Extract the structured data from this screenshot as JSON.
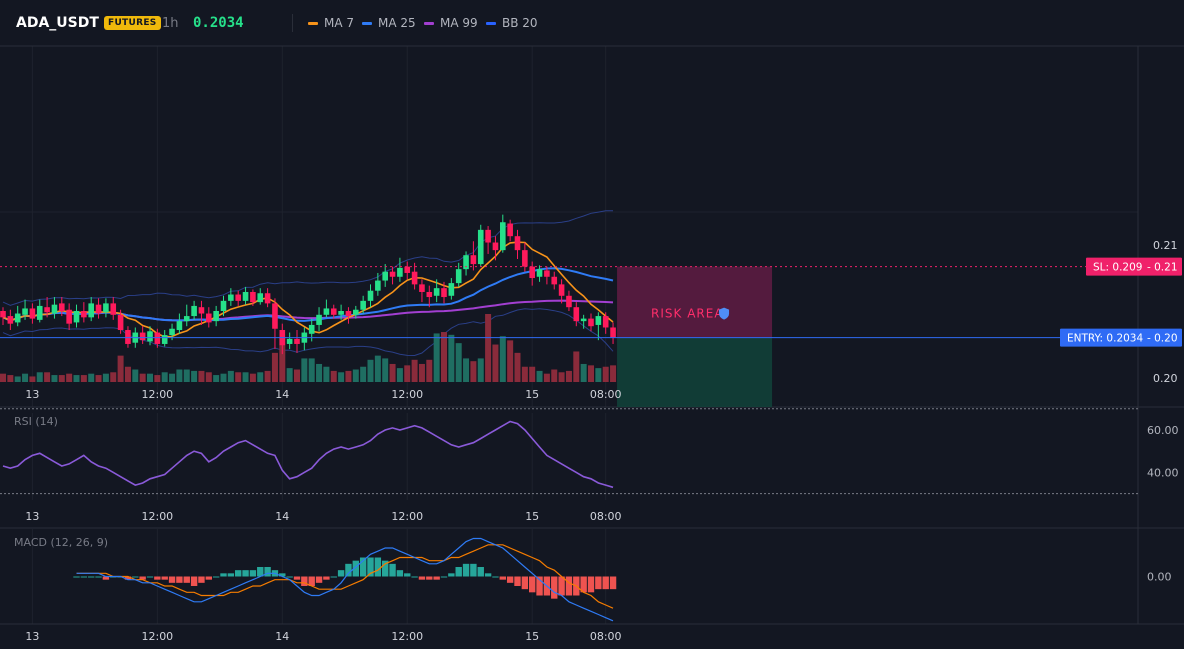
{
  "header": {
    "symbol": "ADA_USDT",
    "badge": "FUTURES",
    "timeframe": "1h",
    "price": "0.2034",
    "legend": [
      {
        "label": "MA 7",
        "color": "#f7931a"
      },
      {
        "label": "MA 25",
        "color": "#2f7bf5"
      },
      {
        "label": "MA 99",
        "color": "#a23fd1"
      },
      {
        "label": "BB 20",
        "color": "#2962ff"
      }
    ]
  },
  "colors": {
    "up": "#26e08a",
    "down": "#ff1a5c",
    "vol_up": "#1f6e62",
    "vol_down": "#8a2b3b",
    "rsi": "#8a5ad9",
    "macd": "#2f7bf5",
    "signal": "#f57c00",
    "hist_up": "#26a69a",
    "hist_down": "#ef5350",
    "entry": "#2f6bf5",
    "sl": "#f0216a"
  },
  "chart_data": {
    "type": "candlestick",
    "x_ticks": [
      "13",
      "12:00",
      "14",
      "12:00",
      "15",
      "08:00"
    ],
    "y_ticks": [
      "0.21",
      "0.20"
    ],
    "ylim": [
      0.1999,
      0.2264
    ],
    "sl": {
      "price": 0.209,
      "label": "SL: 0.209",
      "value_label": "0.21"
    },
    "entry": {
      "price": 0.2034,
      "label": "ENTRY: 0.2034",
      "value_label": "0.20"
    },
    "risk_zone_label": "RISK AREA",
    "candles": [
      [
        0.2055,
        0.205,
        0.2058,
        0.2044
      ],
      [
        0.2051,
        0.2045,
        0.2056,
        0.204
      ],
      [
        0.2046,
        0.2053,
        0.2059,
        0.2043
      ],
      [
        0.2052,
        0.2057,
        0.2064,
        0.2048
      ],
      [
        0.2057,
        0.2049,
        0.2061,
        0.2045
      ],
      [
        0.2048,
        0.2059,
        0.2064,
        0.2046
      ],
      [
        0.2058,
        0.2054,
        0.2066,
        0.205
      ],
      [
        0.2053,
        0.206,
        0.2066,
        0.2049
      ],
      [
        0.2061,
        0.2055,
        0.2066,
        0.2051
      ],
      [
        0.2056,
        0.2045,
        0.2061,
        0.204
      ],
      [
        0.2046,
        0.2055,
        0.206,
        0.2042
      ],
      [
        0.2055,
        0.205,
        0.2062,
        0.2046
      ],
      [
        0.205,
        0.2061,
        0.2066,
        0.2047
      ],
      [
        0.206,
        0.2053,
        0.2065,
        0.2049
      ],
      [
        0.2054,
        0.2061,
        0.2065,
        0.205
      ],
      [
        0.2061,
        0.2052,
        0.2066,
        0.2048
      ],
      [
        0.2052,
        0.204,
        0.2056,
        0.2037
      ],
      [
        0.204,
        0.2029,
        0.2043,
        0.2026
      ],
      [
        0.203,
        0.2038,
        0.2042,
        0.2026
      ],
      [
        0.2038,
        0.2032,
        0.2043,
        0.2029
      ],
      [
        0.2031,
        0.2039,
        0.2043,
        0.2028
      ],
      [
        0.2038,
        0.2029,
        0.2041,
        0.2026
      ],
      [
        0.2029,
        0.2036,
        0.204,
        0.2027
      ],
      [
        0.2036,
        0.2041,
        0.2045,
        0.2032
      ],
      [
        0.204,
        0.2047,
        0.2053,
        0.2037
      ],
      [
        0.2047,
        0.2051,
        0.206,
        0.2043
      ],
      [
        0.2051,
        0.2059,
        0.2063,
        0.2048
      ],
      [
        0.2058,
        0.2053,
        0.2063,
        0.2044
      ],
      [
        0.2053,
        0.2046,
        0.2058,
        0.2042
      ],
      [
        0.2047,
        0.2055,
        0.2059,
        0.2043
      ],
      [
        0.2055,
        0.2063,
        0.2067,
        0.2051
      ],
      [
        0.2063,
        0.2068,
        0.2073,
        0.2059
      ],
      [
        0.2068,
        0.2063,
        0.2071,
        0.2059
      ],
      [
        0.2063,
        0.207,
        0.2074,
        0.206
      ],
      [
        0.207,
        0.2062,
        0.2072,
        0.2059
      ],
      [
        0.2062,
        0.2069,
        0.2073,
        0.206
      ],
      [
        0.2069,
        0.2061,
        0.2073,
        0.2058
      ],
      [
        0.2061,
        0.2041,
        0.2065,
        0.2025
      ],
      [
        0.204,
        0.2028,
        0.2045,
        0.2021
      ],
      [
        0.2029,
        0.2033,
        0.2038,
        0.2025
      ],
      [
        0.2033,
        0.2029,
        0.204,
        0.2022
      ],
      [
        0.203,
        0.2038,
        0.2042,
        0.2024
      ],
      [
        0.2037,
        0.2044,
        0.2049,
        0.2031
      ],
      [
        0.2044,
        0.2052,
        0.2058,
        0.2039
      ],
      [
        0.2052,
        0.2057,
        0.2064,
        0.205
      ],
      [
        0.2057,
        0.2052,
        0.206,
        0.2049
      ],
      [
        0.2052,
        0.2055,
        0.206,
        0.2048
      ],
      [
        0.2055,
        0.2051,
        0.2058,
        0.2045
      ],
      [
        0.2052,
        0.2056,
        0.2059,
        0.2049
      ],
      [
        0.2056,
        0.2063,
        0.2067,
        0.2053
      ],
      [
        0.2063,
        0.2071,
        0.2076,
        0.2058
      ],
      [
        0.2071,
        0.2079,
        0.2085,
        0.2067
      ],
      [
        0.2079,
        0.2086,
        0.2092,
        0.2074
      ],
      [
        0.2086,
        0.2082,
        0.209,
        0.2076
      ],
      [
        0.2082,
        0.2089,
        0.2097,
        0.2078
      ],
      [
        0.209,
        0.2085,
        0.2094,
        0.208
      ],
      [
        0.2086,
        0.2076,
        0.2093,
        0.2072
      ],
      [
        0.2076,
        0.207,
        0.208,
        0.2062
      ],
      [
        0.207,
        0.2066,
        0.2075,
        0.2058
      ],
      [
        0.2067,
        0.2073,
        0.208,
        0.2062
      ],
      [
        0.2073,
        0.2066,
        0.2078,
        0.2061
      ],
      [
        0.2067,
        0.2077,
        0.2081,
        0.2064
      ],
      [
        0.2077,
        0.2088,
        0.2093,
        0.2074
      ],
      [
        0.2088,
        0.2099,
        0.2102,
        0.2083
      ],
      [
        0.2099,
        0.2092,
        0.211,
        0.2087
      ],
      [
        0.2092,
        0.2119,
        0.2123,
        0.209
      ],
      [
        0.2119,
        0.2109,
        0.2122,
        0.21
      ],
      [
        0.2109,
        0.2103,
        0.2114,
        0.2095
      ],
      [
        0.2103,
        0.2125,
        0.2131,
        0.2101
      ],
      [
        0.2124,
        0.2114,
        0.2127,
        0.211
      ],
      [
        0.2114,
        0.2103,
        0.2119,
        0.2096
      ],
      [
        0.2103,
        0.209,
        0.2109,
        0.2086
      ],
      [
        0.209,
        0.2081,
        0.2094,
        0.2075
      ],
      [
        0.2082,
        0.2088,
        0.2091,
        0.2078
      ],
      [
        0.2087,
        0.2082,
        0.209,
        0.2076
      ],
      [
        0.2082,
        0.2076,
        0.2086,
        0.2072
      ],
      [
        0.2076,
        0.2067,
        0.208,
        0.2061
      ],
      [
        0.2067,
        0.2058,
        0.2071,
        0.2055
      ],
      [
        0.2058,
        0.2047,
        0.2062,
        0.2043
      ],
      [
        0.2047,
        0.2049,
        0.2052,
        0.2041
      ],
      [
        0.2049,
        0.2043,
        0.2053,
        0.2039
      ],
      [
        0.2044,
        0.2051,
        0.2054,
        0.2032
      ],
      [
        0.2051,
        0.2042,
        0.2054,
        0.2037
      ],
      [
        0.2042,
        0.2034,
        0.2046,
        0.2029
      ]
    ],
    "volume": [
      6,
      5,
      4,
      6,
      4,
      7,
      7,
      5,
      5,
      6,
      5,
      5,
      6,
      5,
      6,
      7,
      19,
      11,
      9,
      6,
      6,
      5,
      7,
      6,
      9,
      9,
      8,
      8,
      7,
      5,
      6,
      8,
      7,
      7,
      6,
      7,
      8,
      21,
      32,
      10,
      9,
      17,
      17,
      13,
      11,
      8,
      7,
      8,
      9,
      11,
      16,
      19,
      17,
      13,
      10,
      12,
      16,
      13,
      16,
      35,
      36,
      34,
      28,
      17,
      15,
      17,
      49,
      27,
      33,
      30,
      21,
      11,
      11,
      8,
      6,
      9,
      7,
      8,
      22,
      13,
      12,
      10,
      11,
      12
    ],
    "rsi": {
      "label": "RSI (14)",
      "y_ticks": [
        "60.00",
        "40.00"
      ],
      "ylim": [
        27,
        68
      ],
      "values": [
        43,
        42,
        43,
        46,
        48,
        49,
        47,
        45,
        43,
        44,
        46,
        48,
        45,
        43,
        42,
        40,
        38,
        36,
        34,
        35,
        37,
        38,
        39,
        42,
        45,
        48,
        50,
        49,
        45,
        47,
        50,
        52,
        54,
        55,
        53,
        51,
        49,
        48,
        41,
        37,
        38,
        40,
        42,
        46,
        49,
        51,
        52,
        51,
        52,
        53,
        55,
        58,
        60,
        61,
        60,
        61,
        62,
        61,
        59,
        57,
        55,
        53,
        52,
        53,
        54,
        56,
        58,
        60,
        62,
        64,
        63,
        60,
        56,
        52,
        48,
        46,
        44,
        42,
        40,
        38,
        37,
        35,
        34,
        33
      ]
    },
    "macd": {
      "label": "MACD (12, 26, 9)",
      "y_ticks": [
        "0.00"
      ],
      "ylim": [
        -0.0015,
        0.0015
      ],
      "macd_values": [
        0.0001,
        0.0001,
        0.0001,
        0.0001,
        0.0,
        0.0,
        0.0,
        -0.0001,
        -0.0001,
        -0.0002,
        -0.0002,
        -0.0003,
        -0.0004,
        -0.0005,
        -0.0006,
        -0.0007,
        -0.0008,
        -0.0008,
        -0.0007,
        -0.0006,
        -0.0005,
        -0.0004,
        -0.0003,
        -0.0002,
        -0.0001,
        0.0,
        0.0001,
        0.0001,
        0.0,
        -0.0001,
        -0.0003,
        -0.0005,
        -0.0006,
        -0.0006,
        -0.0005,
        -0.0004,
        -0.0002,
        0.0001,
        0.0003,
        0.0005,
        0.0007,
        0.0008,
        0.0009,
        0.0009,
        0.0008,
        0.0007,
        0.0006,
        0.0005,
        0.0004,
        0.0004,
        0.0005,
        0.0007,
        0.0009,
        0.0011,
        0.0012,
        0.0012,
        0.0011,
        0.001,
        0.0009,
        0.0007,
        0.0005,
        0.0003,
        0.0001,
        -0.0001,
        -0.0003,
        -0.0005,
        -0.0006,
        -0.0008,
        -0.0009,
        -0.001,
        -0.0011,
        -0.0012,
        -0.0013,
        -0.0014
      ],
      "signal_values": [
        0.0001,
        0.0001,
        0.0001,
        0.0001,
        0.0001,
        0.0,
        0.0,
        0.0,
        -0.0001,
        -0.0001,
        -0.0002,
        -0.0002,
        -0.0003,
        -0.0003,
        -0.0004,
        -0.0005,
        -0.0005,
        -0.0006,
        -0.0006,
        -0.0006,
        -0.0006,
        -0.0005,
        -0.0005,
        -0.0004,
        -0.0003,
        -0.0003,
        -0.0002,
        -0.0001,
        -0.0001,
        -0.0001,
        -0.0002,
        -0.0002,
        -0.0003,
        -0.0004,
        -0.0004,
        -0.0004,
        -0.0004,
        -0.0003,
        -0.0002,
        -0.0001,
        0.0001,
        0.0002,
        0.0004,
        0.0005,
        0.0006,
        0.0006,
        0.0006,
        0.0006,
        0.0005,
        0.0005,
        0.0005,
        0.0006,
        0.0006,
        0.0007,
        0.0008,
        0.0009,
        0.001,
        0.001,
        0.001,
        0.0009,
        0.0008,
        0.0007,
        0.0006,
        0.0005,
        0.0003,
        0.0002,
        0.0,
        -0.0002,
        -0.0003,
        -0.0005,
        -0.0006,
        -0.0008,
        -0.0009,
        -0.001
      ],
      "hist_values": [
        0.0,
        0.0,
        0.0,
        0.0,
        -0.0001,
        0.0,
        0.0,
        -0.0001,
        0.0,
        -0.0001,
        0.0,
        -0.0001,
        -0.0001,
        -0.0002,
        -0.0002,
        -0.0002,
        -0.0003,
        -0.0002,
        -0.0001,
        0.0,
        0.0001,
        0.0001,
        0.0002,
        0.0002,
        0.0002,
        0.0003,
        0.0003,
        0.0002,
        0.0001,
        0.0,
        -0.0001,
        -0.0003,
        -0.0003,
        -0.0002,
        -0.0001,
        0.0,
        0.0002,
        0.0004,
        0.0005,
        0.0006,
        0.0006,
        0.0006,
        0.0005,
        0.0004,
        0.0002,
        0.0001,
        0.0,
        -0.0001,
        -0.0001,
        -0.0001,
        0.0,
        0.0001,
        0.0003,
        0.0004,
        0.0004,
        0.0003,
        0.0001,
        0.0,
        -0.0001,
        -0.0002,
        -0.0003,
        -0.0004,
        -0.0005,
        -0.0006,
        -0.0006,
        -0.0007,
        -0.0006,
        -0.0006,
        -0.0006,
        -0.0005,
        -0.0005,
        -0.0004,
        -0.0004,
        -0.0004
      ]
    }
  }
}
